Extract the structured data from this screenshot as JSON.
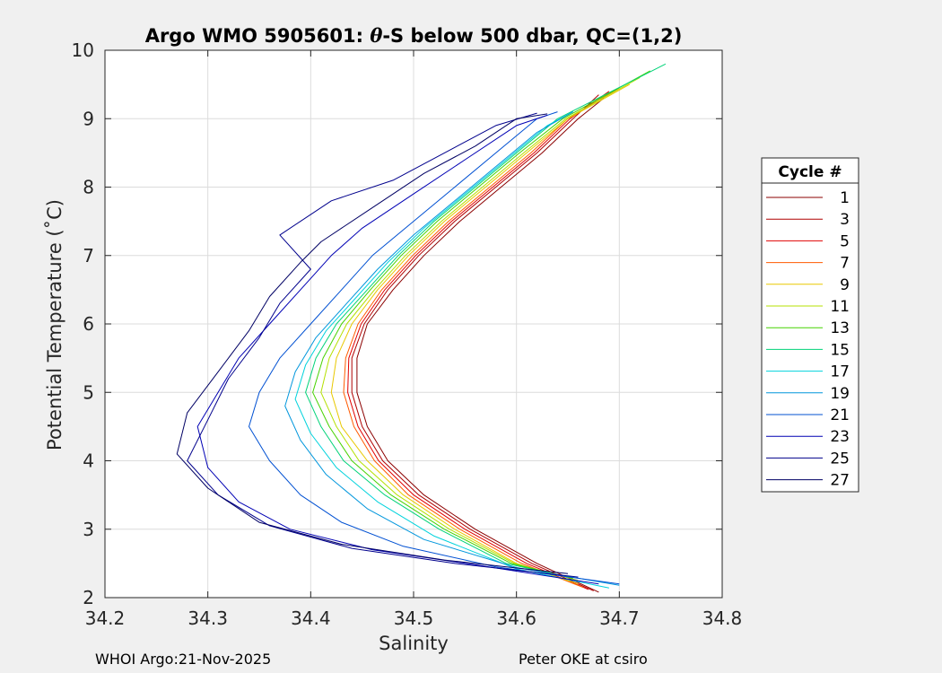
{
  "chart_data": {
    "type": "line",
    "title_prefix": "Argo WMO 5905601: ",
    "title_theta": "θ",
    "title_suffix": "-S below 500 dbar,  QC=(1,2)",
    "xlabel": "Salinity",
    "ylabel": "Potential Temperature (˚C)",
    "xlim": [
      34.2,
      34.8
    ],
    "ylim": [
      2,
      10
    ],
    "xticks": [
      "34.2",
      "34.3",
      "34.4",
      "34.5",
      "34.6",
      "34.7",
      "34.8"
    ],
    "yticks": [
      "2",
      "3",
      "4",
      "5",
      "6",
      "7",
      "8",
      "9",
      "10"
    ],
    "grid": true,
    "legend_title": "Cycle #",
    "legend_placement": "right-outside",
    "series": [
      {
        "name": "1",
        "color": "#8b0000",
        "values": [
          [
            34.68,
            2.08
          ],
          [
            34.62,
            2.5
          ],
          [
            34.56,
            3.0
          ],
          [
            34.51,
            3.5
          ],
          [
            34.475,
            4.0
          ],
          [
            34.455,
            4.5
          ],
          [
            34.445,
            5.0
          ],
          [
            34.445,
            5.5
          ],
          [
            34.455,
            6.0
          ],
          [
            34.48,
            6.5
          ],
          [
            34.51,
            7.0
          ],
          [
            34.545,
            7.5
          ],
          [
            34.585,
            8.0
          ],
          [
            34.625,
            8.5
          ],
          [
            34.66,
            9.0
          ],
          [
            34.685,
            9.3
          ]
        ]
      },
      {
        "name": "3",
        "color": "#b00000",
        "values": [
          [
            34.675,
            2.1
          ],
          [
            34.615,
            2.5
          ],
          [
            34.555,
            3.0
          ],
          [
            34.505,
            3.5
          ],
          [
            34.47,
            4.0
          ],
          [
            34.45,
            4.5
          ],
          [
            34.44,
            5.0
          ],
          [
            34.44,
            5.5
          ],
          [
            34.452,
            6.0
          ],
          [
            34.475,
            6.5
          ],
          [
            34.505,
            7.0
          ],
          [
            34.54,
            7.5
          ],
          [
            34.58,
            8.0
          ],
          [
            34.62,
            8.5
          ],
          [
            34.655,
            9.0
          ],
          [
            34.68,
            9.35
          ]
        ]
      },
      {
        "name": "5",
        "color": "#e00000",
        "values": [
          [
            34.67,
            2.12
          ],
          [
            34.61,
            2.5
          ],
          [
            34.55,
            3.0
          ],
          [
            34.5,
            3.5
          ],
          [
            34.466,
            4.0
          ],
          [
            34.446,
            4.5
          ],
          [
            34.436,
            5.0
          ],
          [
            34.437,
            5.5
          ],
          [
            34.449,
            6.0
          ],
          [
            34.472,
            6.5
          ],
          [
            34.502,
            7.0
          ],
          [
            34.537,
            7.5
          ],
          [
            34.577,
            8.0
          ],
          [
            34.617,
            8.5
          ],
          [
            34.652,
            9.0
          ],
          [
            34.69,
            9.4
          ]
        ]
      },
      {
        "name": "7",
        "color": "#ff5a00",
        "values": [
          [
            34.665,
            2.15
          ],
          [
            34.605,
            2.5
          ],
          [
            34.545,
            3.0
          ],
          [
            34.495,
            3.5
          ],
          [
            34.462,
            4.0
          ],
          [
            34.442,
            4.5
          ],
          [
            34.432,
            5.0
          ],
          [
            34.434,
            5.5
          ],
          [
            34.446,
            6.0
          ],
          [
            34.469,
            6.5
          ],
          [
            34.499,
            7.0
          ],
          [
            34.534,
            7.5
          ],
          [
            34.574,
            8.0
          ],
          [
            34.614,
            8.5
          ],
          [
            34.65,
            9.0
          ],
          [
            34.7,
            9.45
          ]
        ]
      },
      {
        "name": "9",
        "color": "#e8c800",
        "values": [
          [
            34.66,
            2.2
          ],
          [
            34.6,
            2.5
          ],
          [
            34.54,
            3.0
          ],
          [
            34.49,
            3.5
          ],
          [
            34.455,
            4.0
          ],
          [
            34.43,
            4.5
          ],
          [
            34.42,
            5.0
          ],
          [
            34.425,
            5.5
          ],
          [
            34.44,
            6.0
          ],
          [
            34.465,
            6.5
          ],
          [
            34.495,
            7.0
          ],
          [
            34.53,
            7.5
          ],
          [
            34.57,
            8.0
          ],
          [
            34.61,
            8.5
          ],
          [
            34.65,
            9.0
          ],
          [
            34.71,
            9.5
          ]
        ]
      },
      {
        "name": "11",
        "color": "#b4e000",
        "values": [
          [
            34.66,
            2.25
          ],
          [
            34.598,
            2.5
          ],
          [
            34.535,
            3.0
          ],
          [
            34.484,
            3.5
          ],
          [
            34.447,
            4.0
          ],
          [
            34.425,
            4.5
          ],
          [
            34.41,
            5.0
          ],
          [
            34.418,
            5.5
          ],
          [
            34.435,
            6.0
          ],
          [
            34.462,
            6.5
          ],
          [
            34.492,
            7.0
          ],
          [
            34.527,
            7.5
          ],
          [
            34.567,
            8.0
          ],
          [
            34.607,
            8.5
          ],
          [
            34.648,
            9.0
          ],
          [
            34.72,
            9.6
          ]
        ]
      },
      {
        "name": "13",
        "color": "#46d200",
        "values": [
          [
            34.655,
            2.28
          ],
          [
            34.595,
            2.5
          ],
          [
            34.53,
            3.0
          ],
          [
            34.478,
            3.5
          ],
          [
            34.44,
            4.0
          ],
          [
            34.418,
            4.5
          ],
          [
            34.402,
            5.0
          ],
          [
            34.412,
            5.5
          ],
          [
            34.43,
            6.0
          ],
          [
            34.458,
            6.5
          ],
          [
            34.488,
            7.0
          ],
          [
            34.523,
            7.5
          ],
          [
            34.563,
            8.0
          ],
          [
            34.603,
            8.5
          ],
          [
            34.645,
            9.0
          ],
          [
            34.73,
            9.7
          ]
        ]
      },
      {
        "name": "15",
        "color": "#00d278",
        "values": [
          [
            34.65,
            2.3
          ],
          [
            34.59,
            2.5
          ],
          [
            34.525,
            3.0
          ],
          [
            34.472,
            3.5
          ],
          [
            34.432,
            4.0
          ],
          [
            34.41,
            4.5
          ],
          [
            34.395,
            5.0
          ],
          [
            34.405,
            5.5
          ],
          [
            34.425,
            6.0
          ],
          [
            34.455,
            6.5
          ],
          [
            34.485,
            7.0
          ],
          [
            34.52,
            7.5
          ],
          [
            34.56,
            8.0
          ],
          [
            34.6,
            8.5
          ],
          [
            34.64,
            9.0
          ],
          [
            34.745,
            9.8
          ]
        ]
      },
      {
        "name": "17",
        "color": "#00d2dc",
        "values": [
          [
            34.69,
            2.14
          ],
          [
            34.6,
            2.42
          ],
          [
            34.52,
            2.9
          ],
          [
            34.465,
            3.4
          ],
          [
            34.425,
            3.9
          ],
          [
            34.4,
            4.4
          ],
          [
            34.385,
            4.9
          ],
          [
            34.395,
            5.4
          ],
          [
            34.415,
            5.9
          ],
          [
            34.445,
            6.4
          ],
          [
            34.475,
            6.9
          ],
          [
            34.51,
            7.4
          ],
          [
            34.55,
            7.9
          ],
          [
            34.59,
            8.4
          ],
          [
            34.63,
            8.9
          ],
          [
            34.655,
            9.1
          ]
        ]
      },
      {
        "name": "19",
        "color": "#0096dc",
        "values": [
          [
            34.7,
            2.18
          ],
          [
            34.6,
            2.44
          ],
          [
            34.51,
            2.85
          ],
          [
            34.455,
            3.3
          ],
          [
            34.415,
            3.8
          ],
          [
            34.39,
            4.3
          ],
          [
            34.375,
            4.8
          ],
          [
            34.385,
            5.3
          ],
          [
            34.405,
            5.8
          ],
          [
            34.435,
            6.3
          ],
          [
            34.465,
            6.8
          ],
          [
            34.5,
            7.3
          ],
          [
            34.54,
            7.8
          ],
          [
            34.58,
            8.3
          ],
          [
            34.62,
            8.8
          ],
          [
            34.655,
            9.1
          ]
        ]
      },
      {
        "name": "21",
        "color": "#0050d2",
        "values": [
          [
            34.7,
            2.2
          ],
          [
            34.58,
            2.45
          ],
          [
            34.49,
            2.75
          ],
          [
            34.43,
            3.1
          ],
          [
            34.39,
            3.5
          ],
          [
            34.36,
            4.0
          ],
          [
            34.34,
            4.5
          ],
          [
            34.35,
            5.0
          ],
          [
            34.37,
            5.5
          ],
          [
            34.4,
            6.0
          ],
          [
            34.43,
            6.5
          ],
          [
            34.46,
            7.0
          ],
          [
            34.5,
            7.5
          ],
          [
            34.54,
            8.0
          ],
          [
            34.58,
            8.5
          ],
          [
            34.62,
            9.0
          ],
          [
            34.64,
            9.1
          ]
        ]
      },
      {
        "name": "23",
        "color": "#0000b4",
        "values": [
          [
            34.68,
            2.2
          ],
          [
            34.56,
            2.48
          ],
          [
            34.46,
            2.7
          ],
          [
            34.38,
            3.0
          ],
          [
            34.33,
            3.4
          ],
          [
            34.3,
            3.9
          ],
          [
            34.29,
            4.5
          ],
          [
            34.31,
            5.0
          ],
          [
            34.33,
            5.5
          ],
          [
            34.36,
            6.0
          ],
          [
            34.39,
            6.5
          ],
          [
            34.42,
            7.0
          ],
          [
            34.45,
            7.4
          ],
          [
            34.5,
            7.9
          ],
          [
            34.55,
            8.4
          ],
          [
            34.6,
            8.9
          ],
          [
            34.63,
            9.05
          ]
        ]
      },
      {
        "name": "25",
        "color": "#00008c",
        "values": [
          [
            34.66,
            2.3
          ],
          [
            34.54,
            2.5
          ],
          [
            34.44,
            2.72
          ],
          [
            34.36,
            3.05
          ],
          [
            34.31,
            3.5
          ],
          [
            34.28,
            4.0
          ],
          [
            34.3,
            4.6
          ],
          [
            34.32,
            5.2
          ],
          [
            34.35,
            5.8
          ],
          [
            34.37,
            6.3
          ],
          [
            34.4,
            6.8
          ],
          [
            34.37,
            7.3
          ],
          [
            34.42,
            7.8
          ],
          [
            34.48,
            8.1
          ],
          [
            34.53,
            8.5
          ],
          [
            34.58,
            8.9
          ],
          [
            34.62,
            9.08
          ]
        ]
      },
      {
        "name": "27",
        "color": "#000064",
        "values": [
          [
            34.65,
            2.35
          ],
          [
            34.53,
            2.55
          ],
          [
            34.43,
            2.78
          ],
          [
            34.35,
            3.1
          ],
          [
            34.3,
            3.6
          ],
          [
            34.27,
            4.1
          ],
          [
            34.28,
            4.7
          ],
          [
            34.31,
            5.3
          ],
          [
            34.34,
            5.9
          ],
          [
            34.36,
            6.4
          ],
          [
            34.39,
            6.9
          ],
          [
            34.41,
            7.2
          ],
          [
            34.46,
            7.7
          ],
          [
            34.51,
            8.2
          ],
          [
            34.56,
            8.6
          ],
          [
            34.6,
            9.0
          ],
          [
            34.63,
            9.07
          ]
        ]
      }
    ]
  },
  "footer": {
    "left": "WHOI Argo:21-Nov-2025",
    "right": "Peter OKE at csiro"
  }
}
